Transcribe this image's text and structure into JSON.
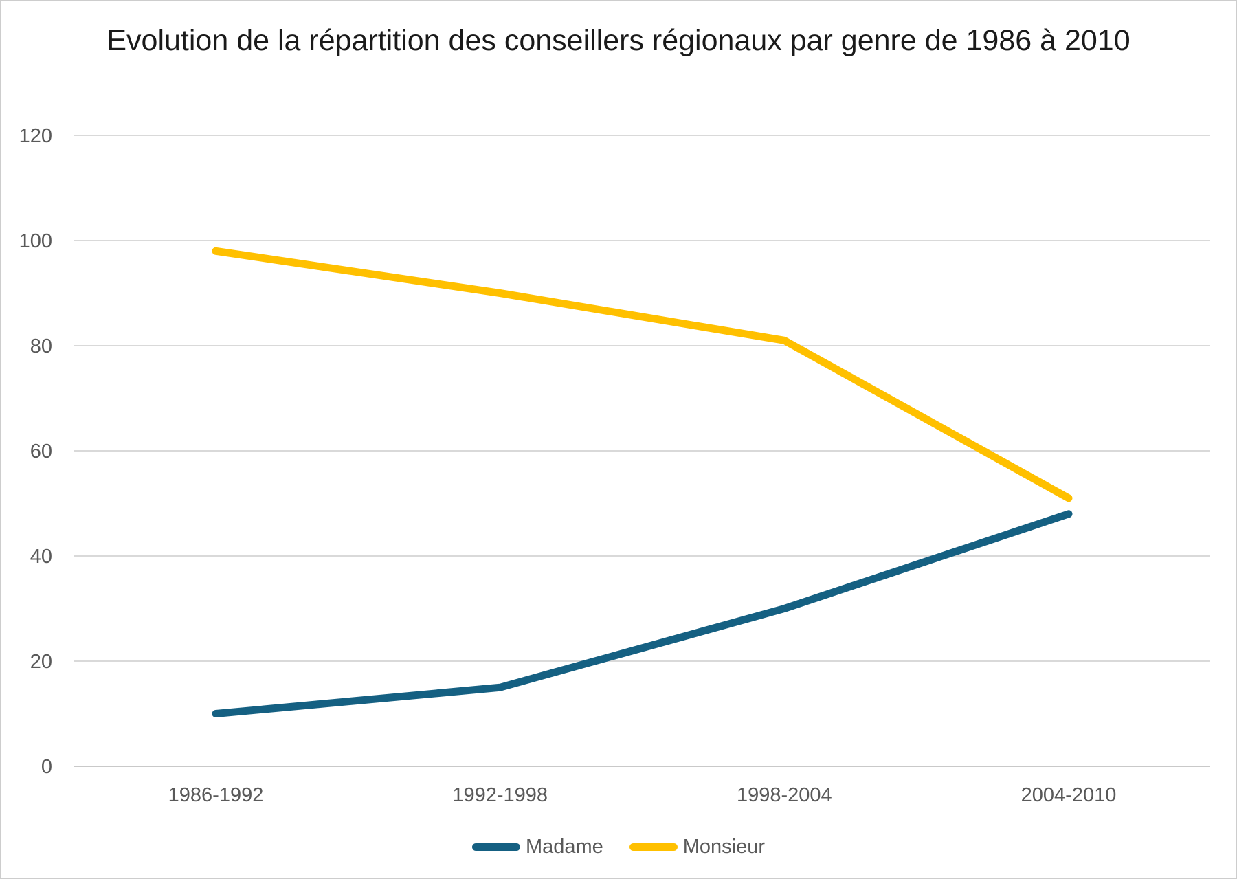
{
  "chart_data": {
    "type": "line",
    "title": "Evolution de la répartition des conseillers régionaux par genre de 1986 à 2010",
    "categories": [
      "1986-1992",
      "1992-1998",
      "1998-2004",
      "2004-2010"
    ],
    "series": [
      {
        "name": "Madame",
        "color": "#156082",
        "values": [
          10,
          15,
          30,
          48
        ]
      },
      {
        "name": "Monsieur",
        "color": "#FFC000",
        "values": [
          98,
          90,
          81,
          51
        ]
      }
    ],
    "xlabel": "",
    "ylabel": "",
    "ylim": [
      0,
      120
    ],
    "ytick_step": 20,
    "yticks": [
      "0",
      "20",
      "40",
      "60",
      "80",
      "100",
      "120"
    ],
    "grid": true,
    "legend_position": "bottom"
  },
  "colors": {
    "gridline": "#d9d9d9",
    "axis_line": "#c9c9c9",
    "axis_text": "#595959",
    "title_text": "#1a1a1a",
    "series_madame": "#156082",
    "series_monsieur": "#FFC000",
    "canvas_border": "#cdcdcd",
    "background": "#ffffff"
  }
}
